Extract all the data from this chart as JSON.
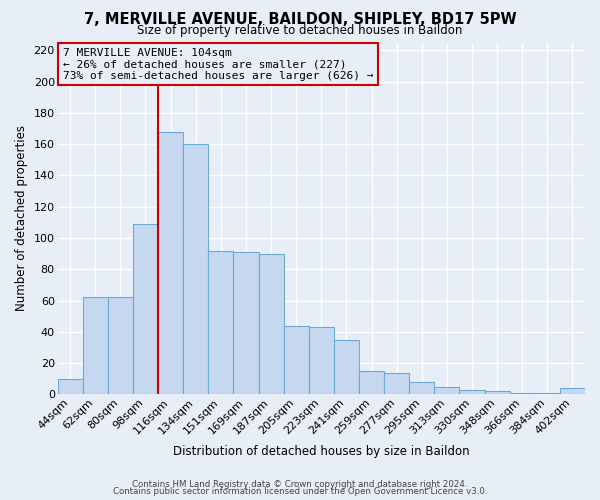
{
  "title": "7, MERVILLE AVENUE, BAILDON, SHIPLEY, BD17 5PW",
  "subtitle": "Size of property relative to detached houses in Baildon",
  "xlabel": "Distribution of detached houses by size in Baildon",
  "ylabel": "Number of detached properties",
  "bar_labels": [
    "44sqm",
    "62sqm",
    "80sqm",
    "98sqm",
    "116sqm",
    "134sqm",
    "151sqm",
    "169sqm",
    "187sqm",
    "205sqm",
    "223sqm",
    "241sqm",
    "259sqm",
    "277sqm",
    "295sqm",
    "313sqm",
    "330sqm",
    "348sqm",
    "366sqm",
    "384sqm",
    "402sqm"
  ],
  "bar_values": [
    10,
    62,
    62,
    109,
    168,
    160,
    92,
    91,
    90,
    44,
    43,
    35,
    15,
    14,
    8,
    5,
    3,
    2,
    1,
    1,
    4
  ],
  "bar_color": "#c5d8f0",
  "bar_edge_color": "#6aaad4",
  "bg_color": "#e8eef8",
  "grid_color": "#d0d8e8",
  "vline_color": "#cc0000",
  "vline_pos": 3.5,
  "annotation_text": "7 MERVILLE AVENUE: 104sqm\n← 26% of detached houses are smaller (227)\n73% of semi-detached houses are larger (626) →",
  "annotation_box_color": "#cc0000",
  "ylim": [
    0,
    225
  ],
  "yticks": [
    0,
    20,
    40,
    60,
    80,
    100,
    120,
    140,
    160,
    180,
    200,
    220
  ],
  "footer_line1": "Contains HM Land Registry data © Crown copyright and database right 2024.",
  "footer_line2": "Contains public sector information licensed under the Open Government Licence v3.0."
}
